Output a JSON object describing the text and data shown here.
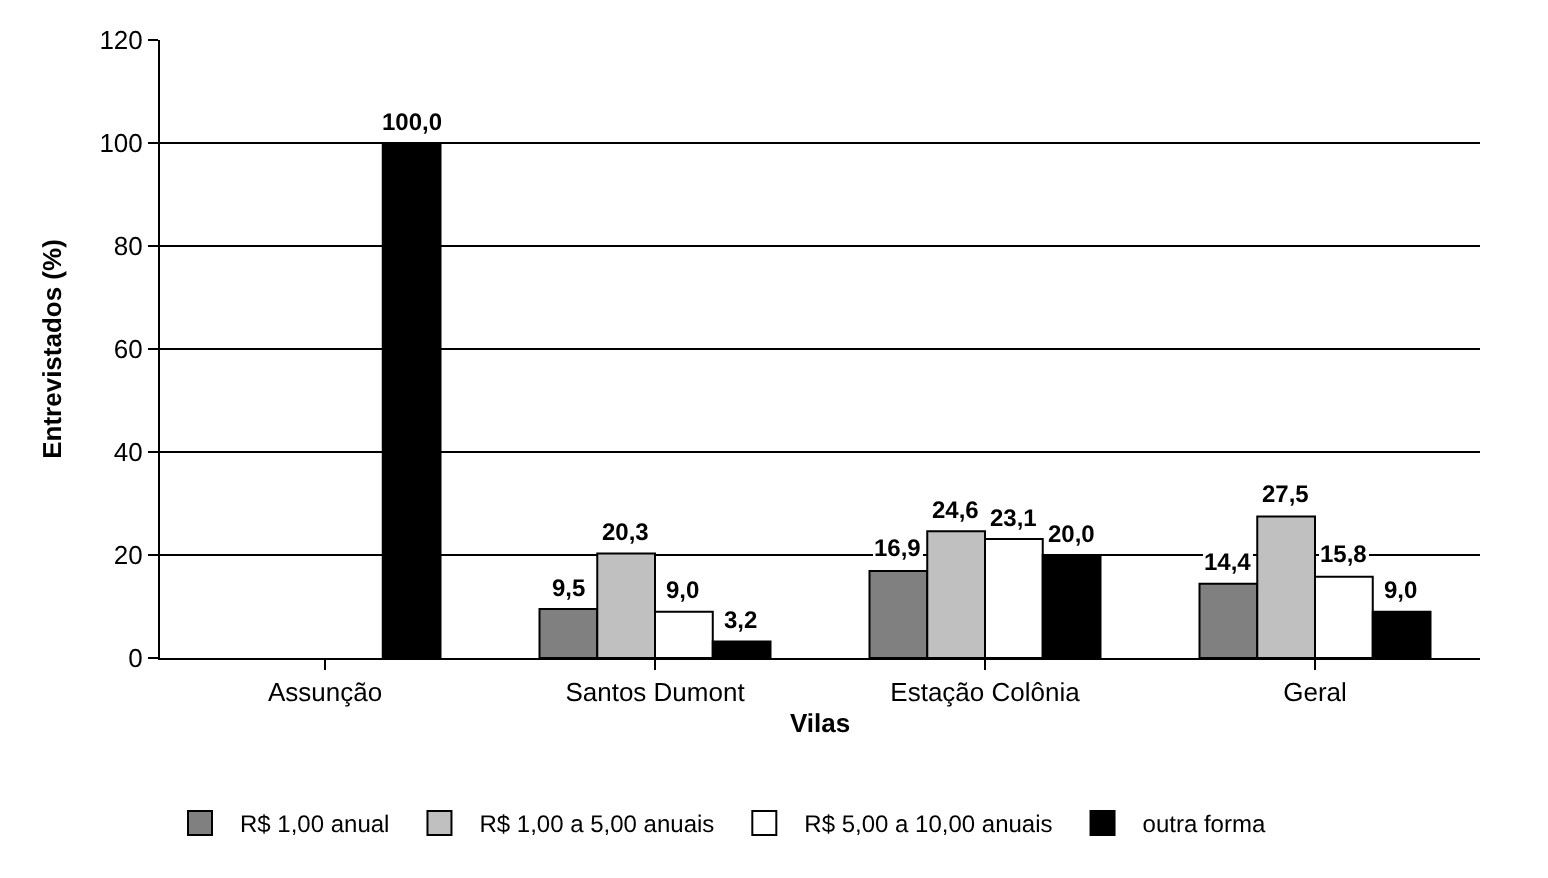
{
  "chart_data": {
    "type": "bar",
    "xlabel": "Vilas",
    "ylabel": "Entrevistados (%)",
    "categories": [
      "Assunção",
      "Santos Dumont",
      "Estação Colônia",
      "Geral"
    ],
    "series": [
      {
        "name": "R$ 1,00 anual",
        "color": "#808080",
        "values": [
          null,
          9.5,
          16.9,
          14.4
        ],
        "value_labels": [
          null,
          "9,5",
          "16,9",
          "14,4"
        ]
      },
      {
        "name": "R$ 1,00 a 5,00 anuais",
        "color": "#c0c0c0",
        "values": [
          null,
          20.3,
          24.6,
          27.5
        ],
        "value_labels": [
          null,
          "20,3",
          "24,6",
          "27,5"
        ]
      },
      {
        "name": "R$ 5,00 a 10,00 anuais",
        "color": "#ffffff",
        "values": [
          null,
          9.0,
          23.1,
          15.8
        ],
        "value_labels": [
          null,
          "9,0",
          "23,1",
          "15,8"
        ]
      },
      {
        "name": "outra forma",
        "color": "#000000",
        "values": [
          100.0,
          3.2,
          20.0,
          9.0
        ],
        "value_labels": [
          "100,0",
          "3,2",
          "20,0",
          "9,0"
        ]
      }
    ],
    "ylim": [
      0,
      120
    ],
    "yticks": [
      0,
      20,
      40,
      60,
      80,
      100,
      120
    ],
    "grid": "y",
    "legend": "bottom"
  }
}
